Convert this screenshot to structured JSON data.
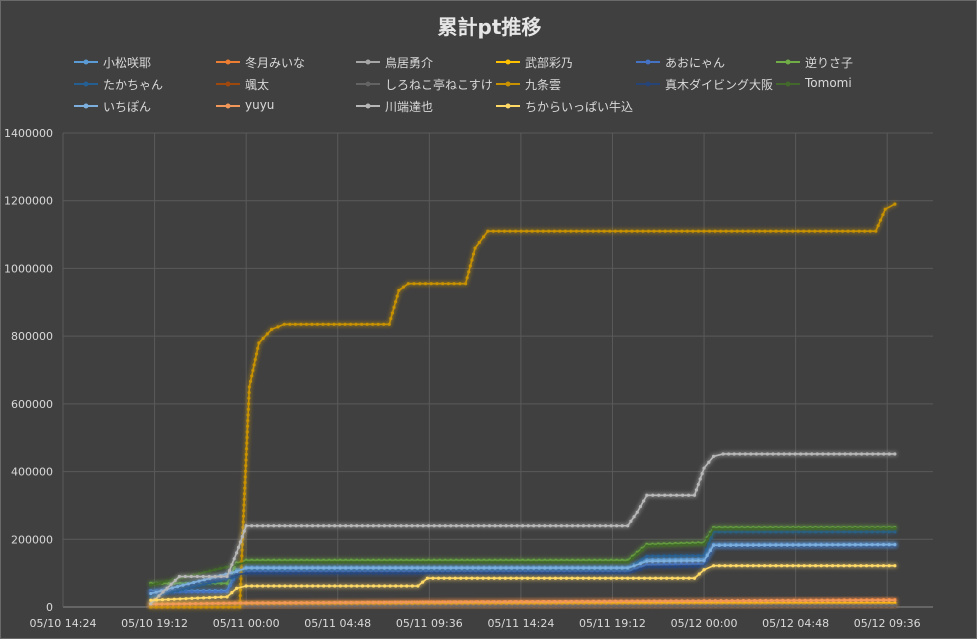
{
  "chart_data": {
    "type": "line",
    "title": "累計pt推移",
    "xlabel": "",
    "ylabel": "",
    "ylim": [
      0,
      1400000
    ],
    "yticks": [
      0,
      200000,
      400000,
      600000,
      800000,
      1000000,
      1200000,
      1400000
    ],
    "ytick_labels": [
      "0",
      "200000",
      "400000",
      "600000",
      "800000",
      "1000000",
      "1200000",
      "1400000"
    ],
    "xlim": [
      "05/10 14:24",
      "05/12 12:00"
    ],
    "xtick_labels": [
      "05/10 14:24",
      "05/10 19:12",
      "05/11 00:00",
      "05/11 04:48",
      "05/11 09:36",
      "05/11 14:24",
      "05/11 19:12",
      "05/12 00:00",
      "05/12 04:48",
      "05/12 09:36"
    ],
    "grid": true,
    "legend_position": "top",
    "series": [
      {
        "name": "小松咲耶",
        "color": "#5b9bd5",
        "points": [
          [
            "05/10 19:00",
            48000
          ],
          [
            "05/10 23:00",
            48000
          ],
          [
            "05/10 23:30",
            110000
          ],
          [
            "05/11 00:00",
            118000
          ],
          [
            "05/11 20:00",
            118000
          ],
          [
            "05/11 21:00",
            140000
          ],
          [
            "05/12 00:00",
            142000
          ],
          [
            "05/12 00:30",
            185000
          ],
          [
            "05/12 10:00",
            185000
          ]
        ]
      },
      {
        "name": "冬月みいな",
        "color": "#ed7d31",
        "points": [
          [
            "05/10 19:00",
            4000
          ],
          [
            "05/11 00:00",
            10000
          ],
          [
            "05/11 10:00",
            15000
          ],
          [
            "05/12 00:00",
            18000
          ],
          [
            "05/12 10:00",
            22000
          ]
        ]
      },
      {
        "name": "鳥居勇介",
        "color": "#a5a5a5",
        "points": [
          [
            "05/10 19:00",
            2000
          ],
          [
            "05/12 10:00",
            6000
          ]
        ]
      },
      {
        "name": "武部彩乃",
        "color": "#ffc000",
        "points": [
          [
            "05/10 19:00",
            8000
          ],
          [
            "05/11 00:00",
            10000
          ],
          [
            "05/12 10:00",
            12000
          ]
        ]
      },
      {
        "name": "あおにゃん",
        "color": "#4472c4",
        "points": [
          [
            "05/10 19:00",
            45000
          ],
          [
            "05/10 23:00",
            45000
          ],
          [
            "05/10 23:30",
            100000
          ],
          [
            "05/11 00:00",
            105000
          ],
          [
            "05/11 20:00",
            105000
          ],
          [
            "05/11 21:00",
            125000
          ],
          [
            "05/12 00:00",
            127000
          ],
          [
            "05/12 00:30",
            180000
          ],
          [
            "05/12 10:00",
            182000
          ]
        ]
      },
      {
        "name": "逆りさ子",
        "color": "#70ad47",
        "points": [
          [
            "05/10 19:00",
            70000
          ],
          [
            "05/10 23:00",
            70000
          ],
          [
            "05/10 23:30",
            130000
          ],
          [
            "05/11 00:00",
            138000
          ],
          [
            "05/11 20:00",
            138000
          ],
          [
            "05/11 21:00",
            185000
          ],
          [
            "05/12 00:00",
            190000
          ],
          [
            "05/12 00:30",
            235000
          ],
          [
            "05/12 10:00",
            235000
          ]
        ]
      },
      {
        "name": "たかちゃん",
        "color": "#255e91",
        "points": [
          [
            "05/10 19:00",
            30000
          ],
          [
            "05/10 23:30",
            90000
          ],
          [
            "05/11 00:00",
            112000
          ],
          [
            "05/11 20:00",
            112000
          ],
          [
            "05/11 21:00",
            150000
          ],
          [
            "05/12 00:00",
            152000
          ],
          [
            "05/12 00:30",
            222000
          ],
          [
            "05/12 10:00",
            222000
          ]
        ]
      },
      {
        "name": "颯太",
        "color": "#9e480e",
        "points": [
          [
            "05/10 19:00",
            1000
          ],
          [
            "05/12 10:00",
            3000
          ]
        ]
      },
      {
        "name": "しろねこ亭ねこすけ",
        "color": "#636363",
        "points": [
          [
            "05/10 19:00",
            1500
          ],
          [
            "05/12 10:00",
            4000
          ]
        ]
      },
      {
        "name": "九条雲",
        "color": "#c79100",
        "points": [
          [
            "05/10 19:00",
            0
          ],
          [
            "05/10 23:40",
            0
          ],
          [
            "05/10 23:50",
            235000
          ],
          [
            "05/11 00:10",
            650000
          ],
          [
            "05/11 00:40",
            780000
          ],
          [
            "05/11 01:20",
            820000
          ],
          [
            "05/11 02:00",
            835000
          ],
          [
            "05/11 07:30",
            835000
          ],
          [
            "05/11 08:00",
            935000
          ],
          [
            "05/11 08:30",
            955000
          ],
          [
            "05/11 11:30",
            955000
          ],
          [
            "05/11 12:00",
            1060000
          ],
          [
            "05/11 12:40",
            1110000
          ],
          [
            "05/12 09:00",
            1110000
          ],
          [
            "05/12 09:30",
            1175000
          ],
          [
            "05/12 10:00",
            1190000
          ]
        ]
      },
      {
        "name": "真木ダイビング大阪",
        "color": "#264478",
        "points": [
          [
            "05/10 19:00",
            42000
          ],
          [
            "05/10 23:30",
            95000
          ],
          [
            "05/11 00:00",
            100000
          ],
          [
            "05/11 20:00",
            100000
          ],
          [
            "05/11 21:00",
            118000
          ],
          [
            "05/12 00:00",
            120000
          ],
          [
            "05/12 00:30",
            178000
          ],
          [
            "05/12 10:00",
            180000
          ]
        ]
      },
      {
        "name": "Tomomi",
        "color": "#43682b",
        "points": [
          [
            "05/10 19:00",
            65000
          ],
          [
            "05/10 23:30",
            125000
          ],
          [
            "05/11 00:00",
            132000
          ],
          [
            "05/11 20:00",
            132000
          ],
          [
            "05/11 21:00",
            180000
          ],
          [
            "05/12 00:00",
            185000
          ],
          [
            "05/12 00:30",
            230000
          ],
          [
            "05/12 10:00",
            232000
          ]
        ]
      },
      {
        "name": "いちぽん",
        "color": "#7cafdd",
        "points": [
          [
            "05/10 19:00",
            40000
          ],
          [
            "05/10 23:30",
            105000
          ],
          [
            "05/11 00:00",
            115000
          ],
          [
            "05/11 20:00",
            115000
          ],
          [
            "05/11 21:00",
            135000
          ],
          [
            "05/12 00:00",
            137000
          ],
          [
            "05/12 00:30",
            182000
          ],
          [
            "05/12 10:00",
            184000
          ]
        ]
      },
      {
        "name": "yuyu",
        "color": "#f1975a",
        "points": [
          [
            "05/10 19:00",
            8000
          ],
          [
            "05/11 00:00",
            12000
          ],
          [
            "05/12 00:00",
            18000
          ],
          [
            "05/12 10:00",
            20000
          ]
        ]
      },
      {
        "name": "川端達也",
        "color": "#b7b7b7",
        "points": [
          [
            "05/10 19:00",
            10000
          ],
          [
            "05/10 20:30",
            90000
          ],
          [
            "05/10 23:00",
            90000
          ],
          [
            "05/10 23:30",
            160000
          ],
          [
            "05/11 00:00",
            240000
          ],
          [
            "05/11 20:00",
            240000
          ],
          [
            "05/11 20:30",
            280000
          ],
          [
            "05/11 21:00",
            330000
          ],
          [
            "05/11 23:30",
            330000
          ],
          [
            "05/12 00:00",
            410000
          ],
          [
            "05/12 00:30",
            445000
          ],
          [
            "05/12 01:00",
            452000
          ],
          [
            "05/12 10:00",
            452000
          ]
        ]
      },
      {
        "name": "ちからいっぱい牛込",
        "color": "#ffd966",
        "points": [
          [
            "05/10 19:00",
            20000
          ],
          [
            "05/10 23:00",
            30000
          ],
          [
            "05/10 23:30",
            55000
          ],
          [
            "05/11 00:00",
            62000
          ],
          [
            "05/11 09:00",
            62000
          ],
          [
            "05/11 09:30",
            85000
          ],
          [
            "05/11 23:30",
            85000
          ],
          [
            "05/12 00:00",
            110000
          ],
          [
            "05/12 00:30",
            122000
          ],
          [
            "05/12 10:00",
            122000
          ]
        ]
      }
    ]
  }
}
